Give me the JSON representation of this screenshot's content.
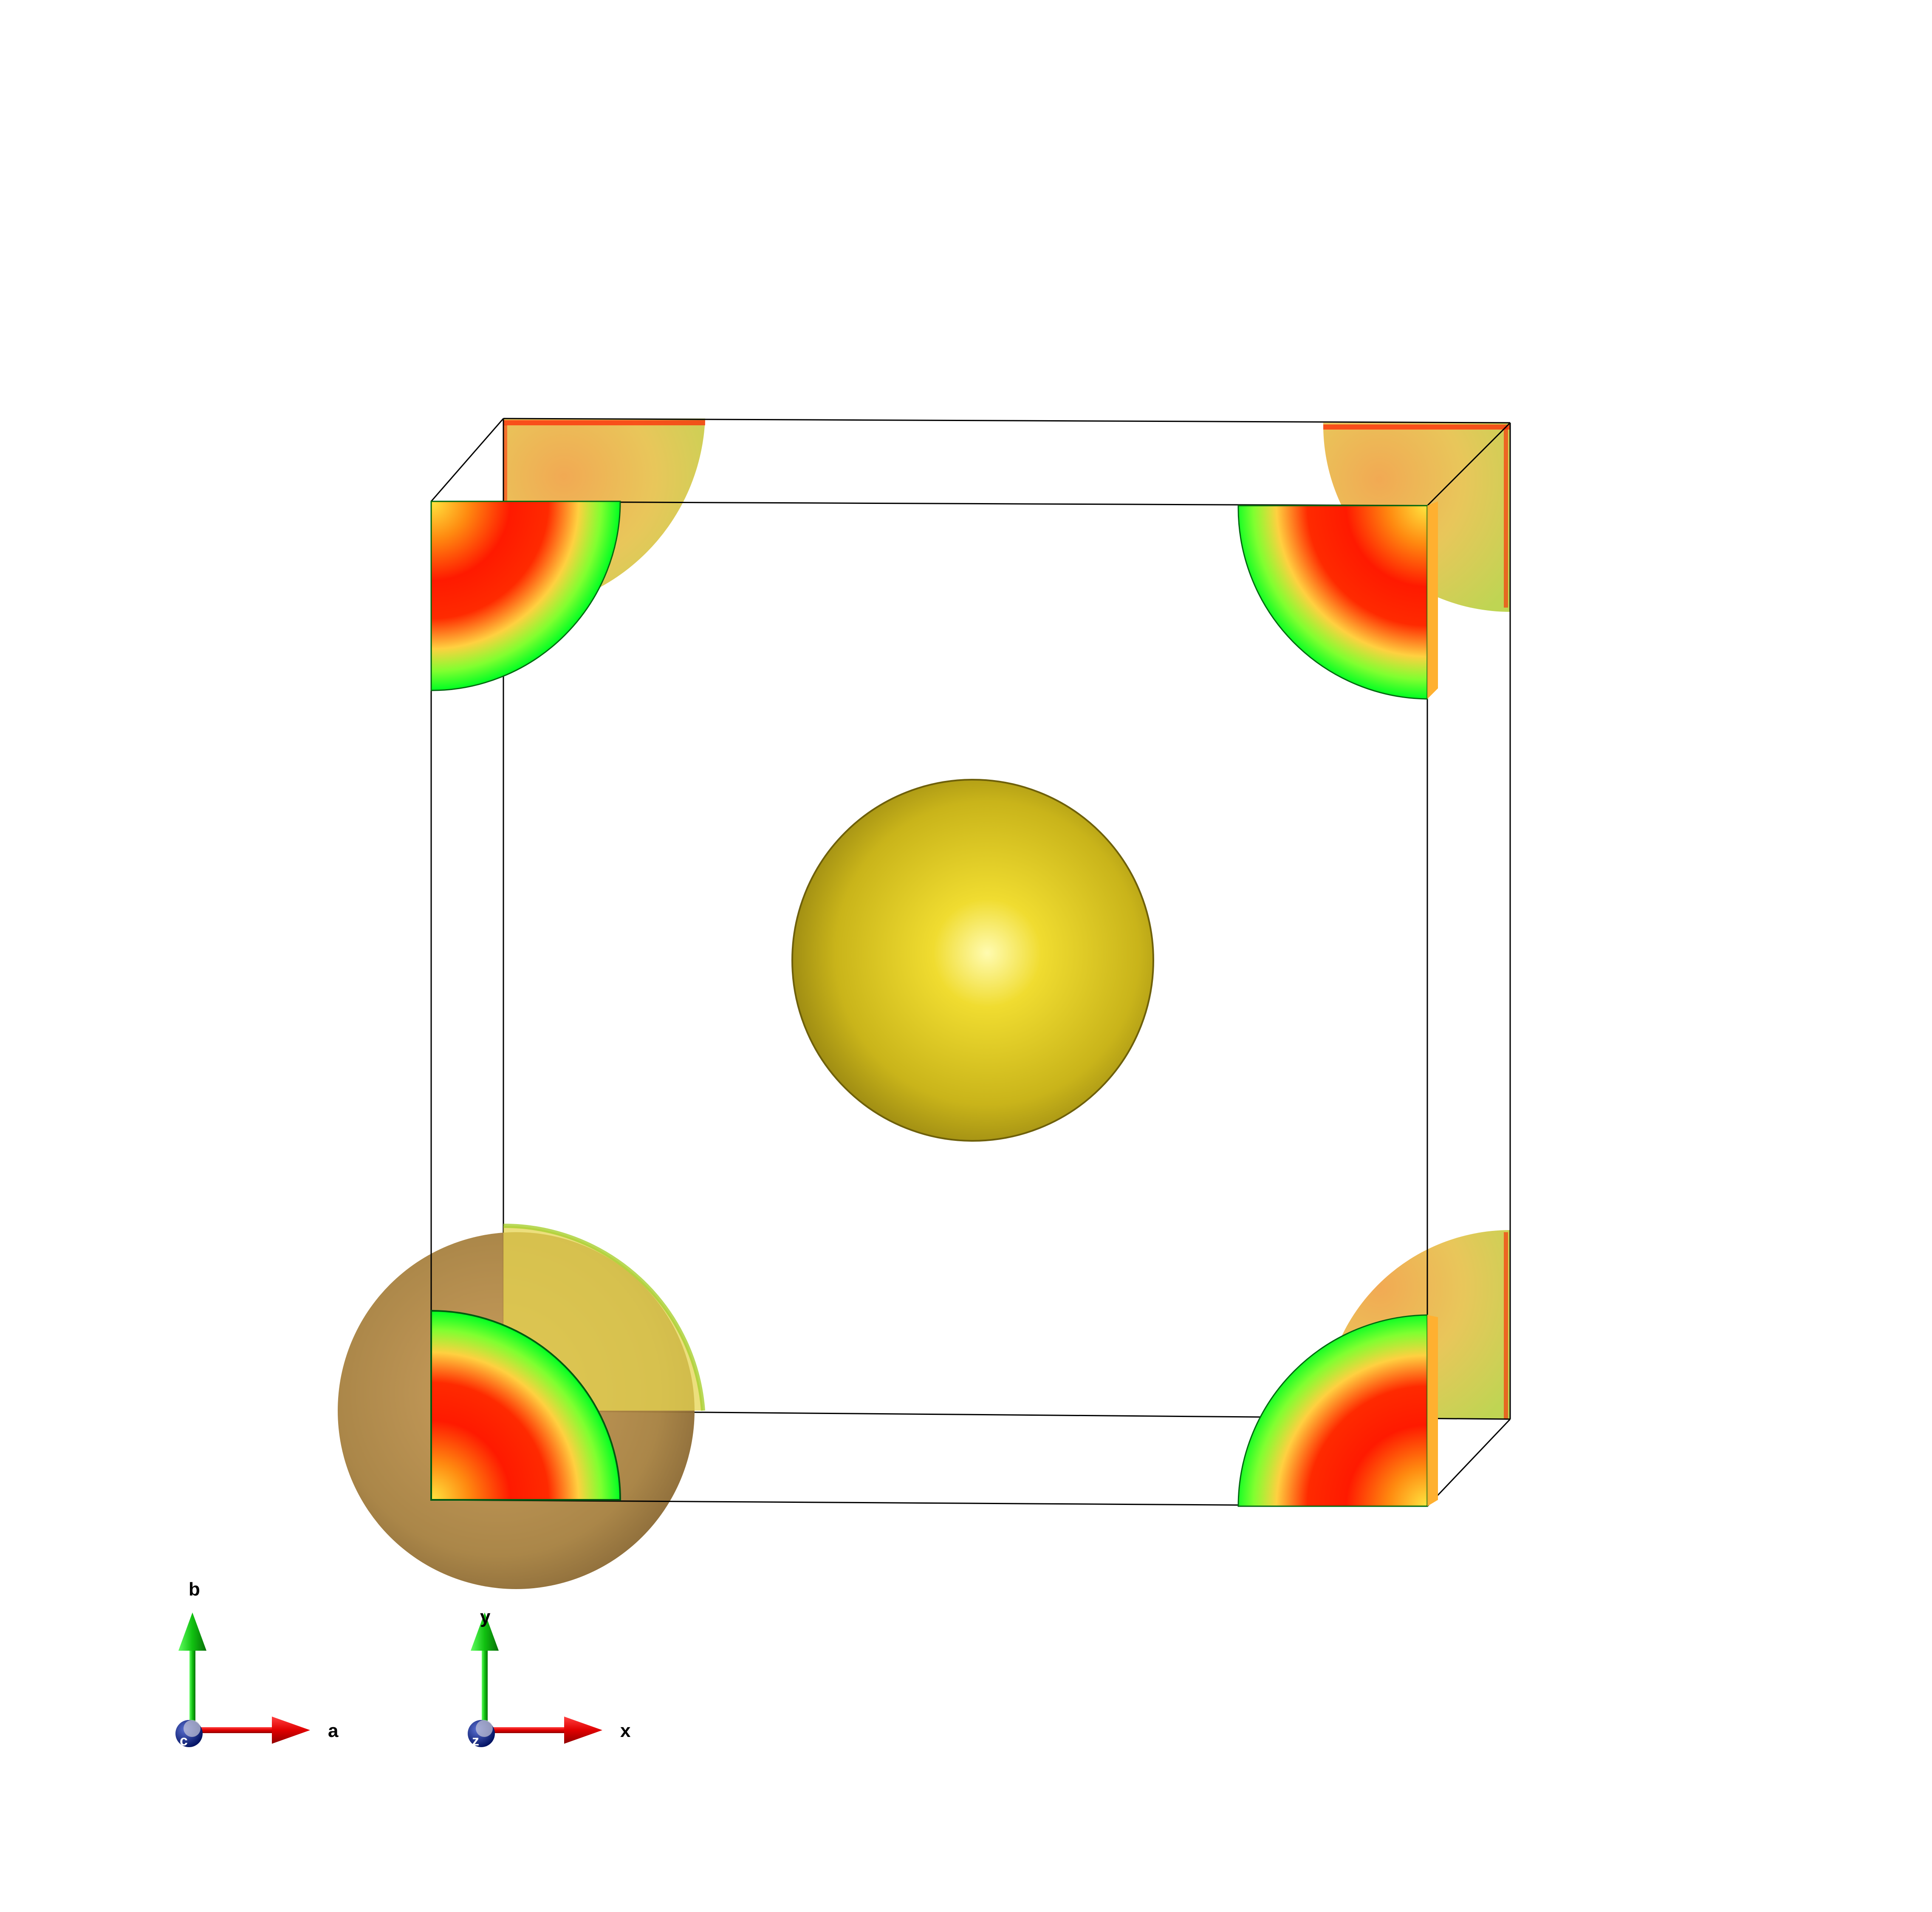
{
  "scene": {
    "description_free": true,
    "colors": {
      "background": "#ffffff",
      "cell_edge": "#000000",
      "center_atom": "#c8b418",
      "center_atom_highlight": "#fff9a0",
      "corner_atom_outer": "#a67b3c",
      "section_red": "#ff1a00",
      "section_yellow": "#ffe640",
      "section_green": "#00ff22",
      "axis_a": "#e00000",
      "axis_b": "#10c010",
      "axis_c": "#001a8c"
    }
  },
  "axes": {
    "lattice": {
      "a": "a",
      "b": "b",
      "c": "c"
    },
    "cartesian": {
      "x": "x",
      "y": "y",
      "z": "z"
    }
  }
}
